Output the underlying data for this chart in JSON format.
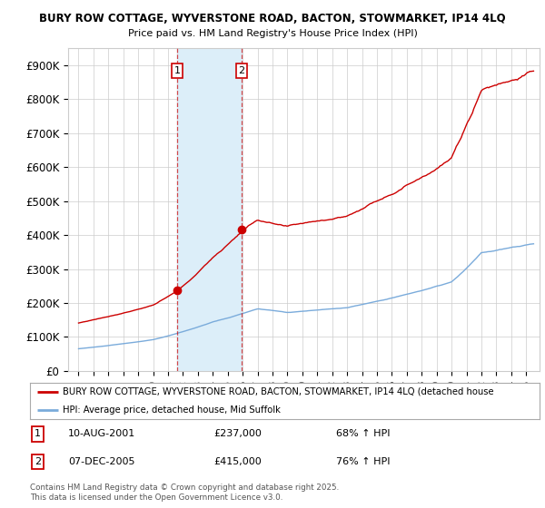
{
  "title1": "BURY ROW COTTAGE, WYVERSTONE ROAD, BACTON, STOWMARKET, IP14 4LQ",
  "title2": "Price paid vs. HM Land Registry's House Price Index (HPI)",
  "ylim": [
    0,
    950000
  ],
  "yticks": [
    0,
    100000,
    200000,
    300000,
    400000,
    500000,
    600000,
    700000,
    800000,
    900000
  ],
  "ytick_labels": [
    "£0",
    "£100K",
    "£200K",
    "£300K",
    "£400K",
    "£500K",
    "£600K",
    "£700K",
    "£800K",
    "£900K"
  ],
  "sale1_year": 2001.61,
  "sale1_price": 237000,
  "sale1_date": "10-AUG-2001",
  "sale1_hpi_text": "68% ↑ HPI",
  "sale2_year": 2005.93,
  "sale2_price": 415000,
  "sale2_date": "07-DEC-2005",
  "sale2_hpi_text": "76% ↑ HPI",
  "legend_property": "BURY ROW COTTAGE, WYVERSTONE ROAD, BACTON, STOWMARKET, IP14 4LQ (detached house",
  "legend_hpi": "HPI: Average price, detached house, Mid Suffolk",
  "footnote": "Contains HM Land Registry data © Crown copyright and database right 2025.\nThis data is licensed under the Open Government Licence v3.0.",
  "property_color": "#cc0000",
  "hpi_color": "#7aabdb",
  "shade_color": "#dceef9",
  "vline_color": "#cc0000",
  "grid_color": "#cccccc",
  "background_color": "#ffffff",
  "sale_amount1": "£237,000",
  "sale_amount2": "£415,000"
}
